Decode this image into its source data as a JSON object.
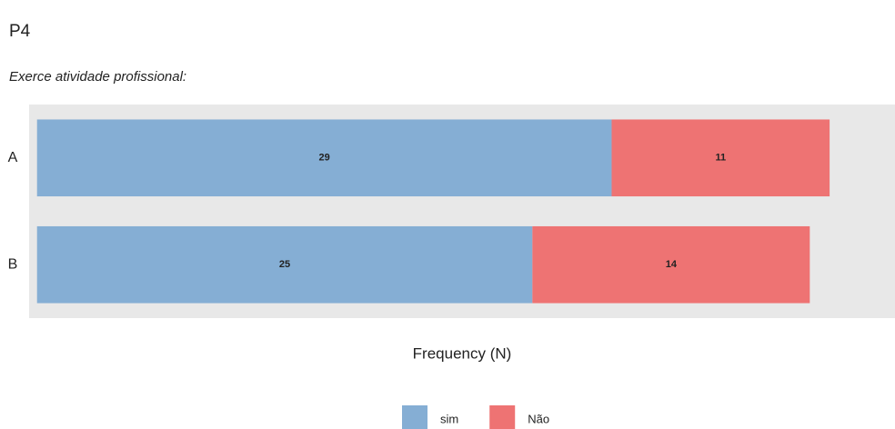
{
  "chart_data": {
    "type": "stacked-barh",
    "title": "P4",
    "subtitle": "Exerce atividade profissional:",
    "x_label": "Frequency (N)",
    "categories": [
      "A",
      "B"
    ],
    "series": [
      {
        "name": "sim",
        "color": "#85aed4",
        "values": [
          29,
          25
        ]
      },
      {
        "name": "Não",
        "color": "#ee7373",
        "values": [
          11,
          14
        ]
      }
    ],
    "xlim": [
      -0.4,
      43.3
    ]
  }
}
